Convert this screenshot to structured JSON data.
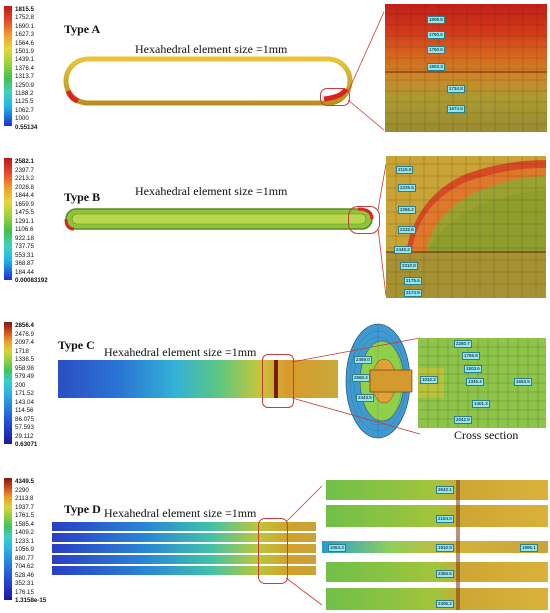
{
  "colors": {
    "red": "#d7261e",
    "orange": "#f0a12a",
    "yellow": "#e6d23a",
    "green": "#5fbd3a",
    "cyan": "#40d6c8",
    "blue": "#1f3fd1",
    "navy": "#1a1a9a",
    "callout": "#c93a3a"
  },
  "panels": [
    {
      "id": "A",
      "title": "Type A",
      "hex_label": "Hexahedral element size =1mm",
      "legend": [
        "1815.5",
        "1752.8",
        "1690.1",
        "1627.3",
        "1564.6",
        "1501.9",
        "1439.1",
        "1376.4",
        "1313.7",
        "1250.9",
        "1188.2",
        "1125.5",
        "1062.7",
        "1000",
        "0.55134"
      ],
      "tags": [
        "1809.8",
        "1790.6",
        "1760.6",
        "1803.3",
        "1734.8",
        "1674.5"
      ]
    },
    {
      "id": "B",
      "title": "Type B",
      "hex_label": "Hexahedral element size =1mm",
      "legend": [
        "2582.1",
        "2397.7",
        "2213.2",
        "2028.8",
        "1844.4",
        "1659.9",
        "1475.5",
        "1291.1",
        "1106.6",
        "922.18",
        "737.75",
        "553.31",
        "368.87",
        "184.44",
        "0.00083192"
      ],
      "tags": [
        "2115.0",
        "2235.6",
        "2256.2",
        "2232.6",
        "2446.2",
        "2310.8",
        "2175.6",
        "2174.9"
      ]
    },
    {
      "id": "C",
      "title": "Type C",
      "hex_label": "Hexahedral element size =1mm",
      "caption": "Cross section",
      "legend": [
        "2856.4",
        "2476.9",
        "2097.4",
        "1718",
        "1338.5",
        "958.98",
        "579.49",
        "200",
        "171.52",
        "143.04",
        "114.56",
        "86.075",
        "57.593",
        "29.112",
        "0.63071"
      ],
      "tags_left": [
        "2469.0",
        "2560.4",
        "2443.5"
      ],
      "tags_right": [
        "2250.7",
        "1766.8",
        "1503.6",
        "1345.4",
        "1401.3",
        "2042.8",
        "1032.2",
        "1653.5"
      ]
    },
    {
      "id": "D",
      "title": "Type D",
      "hex_label": "Hexahedral element size =1mm",
      "legend": [
        "4349.5",
        "2290",
        "2113.8",
        "1937.7",
        "1761.5",
        "1585.4",
        "1409.2",
        "1233.1",
        "1056.9",
        "880.77",
        "704.62",
        "528.46",
        "352.31",
        "176.15",
        "1.3158e-15"
      ],
      "tags": [
        "2642.1",
        "2194.0",
        "1064.3",
        "1910.9",
        "1995.1",
        "2356.6",
        "2405.2"
      ]
    }
  ]
}
